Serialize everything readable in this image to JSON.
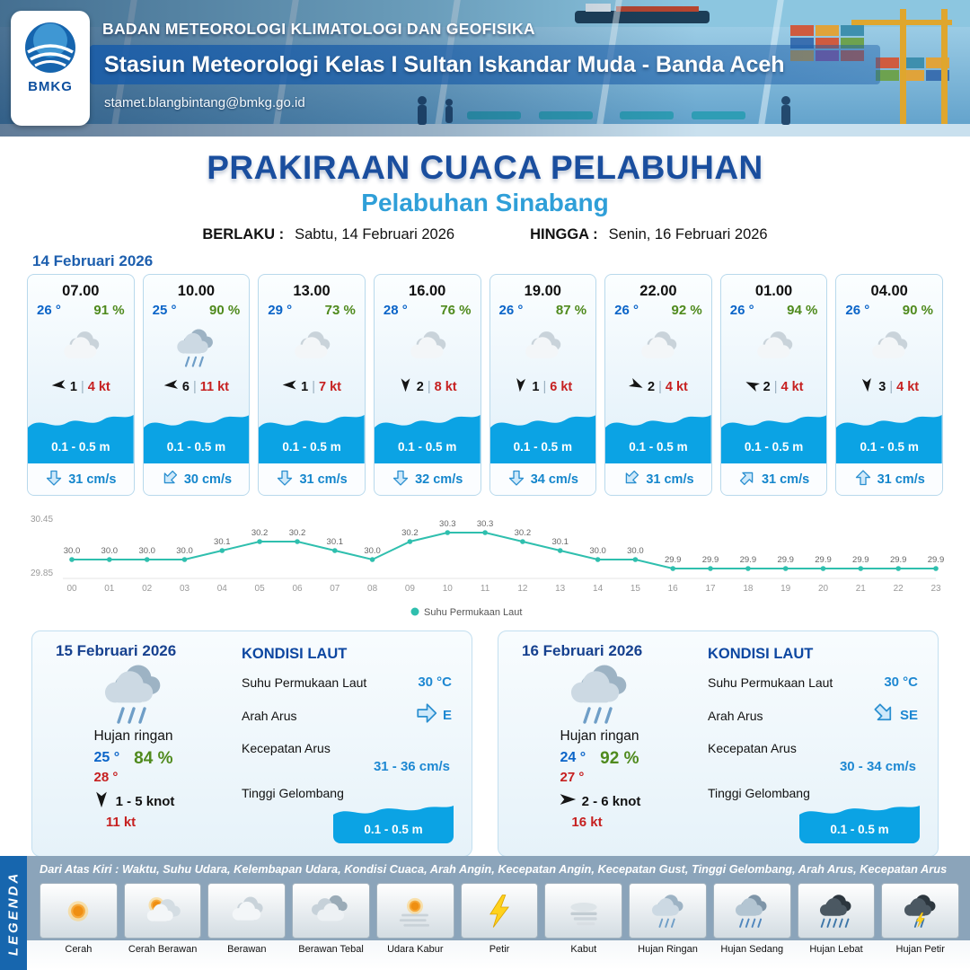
{
  "header": {
    "agency": "BADAN METEOROLOGI KLIMATOLOGI DAN GEOFISIKA",
    "station": "Stasiun Meteorologi Kelas I Sultan Iskandar Muda - Banda Aceh",
    "email": "stamet.blangbintang@bmkg.go.id",
    "logo_label": "BMKG"
  },
  "title": {
    "main": "PRAKIRAAN CUACA PELABUHAN",
    "subtitle": "Pelabuhan Sinabang",
    "berlaku_label": "BERLAKU :",
    "berlaku_value": "Sabtu, 14 Februari 2026",
    "hingga_label": "HINGGA :",
    "hingga_value": "Senin, 16 Februari 2026"
  },
  "ui": {
    "separator": "|"
  },
  "day1": {
    "date": "14 Februari 2026",
    "cards": [
      {
        "time": "07.00",
        "temp": "26 °",
        "rh": "91 %",
        "icon": "berawan",
        "wind_dir_deg": 265,
        "wind": "1",
        "gust": "4 kt",
        "wave": "0.1 - 0.5 m",
        "current_dir_deg": 180,
        "current": "31 cm/s"
      },
      {
        "time": "10.00",
        "temp": "25 °",
        "rh": "90 %",
        "icon": "hujan-ringan",
        "wind_dir_deg": 265,
        "wind": "6",
        "gust": "11 kt",
        "wave": "0.1 - 0.5 m",
        "current_dir_deg": 225,
        "current": "30 cm/s"
      },
      {
        "time": "13.00",
        "temp": "29 °",
        "rh": "73 %",
        "icon": "berawan",
        "wind_dir_deg": 270,
        "wind": "1",
        "gust": "7 kt",
        "wave": "0.1 - 0.5 m",
        "current_dir_deg": 180,
        "current": "31 cm/s"
      },
      {
        "time": "16.00",
        "temp": "28 °",
        "rh": "76 %",
        "icon": "berawan",
        "wind_dir_deg": 180,
        "wind": "2",
        "gust": "8 kt",
        "wave": "0.1 - 0.5 m",
        "current_dir_deg": 180,
        "current": "32 cm/s"
      },
      {
        "time": "19.00",
        "temp": "26 °",
        "rh": "87 %",
        "icon": "berawan",
        "wind_dir_deg": 185,
        "wind": "1",
        "gust": "6 kt",
        "wave": "0.1 - 0.5 m",
        "current_dir_deg": 180,
        "current": "34 cm/s"
      },
      {
        "time": "22.00",
        "temp": "26 °",
        "rh": "92 %",
        "icon": "berawan",
        "wind_dir_deg": 115,
        "wind": "2",
        "gust": "4 kt",
        "wave": "0.1 - 0.5 m",
        "current_dir_deg": 225,
        "current": "31 cm/s"
      },
      {
        "time": "01.00",
        "temp": "26 °",
        "rh": "94 %",
        "icon": "berawan",
        "wind_dir_deg": 295,
        "wind": "2",
        "gust": "4 kt",
        "wave": "0.1 - 0.5 m",
        "current_dir_deg": 45,
        "current": "31 cm/s"
      },
      {
        "time": "04.00",
        "temp": "26 °",
        "rh": "90 %",
        "icon": "berawan",
        "wind_dir_deg": 175,
        "wind": "3",
        "gust": "4 kt",
        "wave": "0.1 - 0.5 m",
        "current_dir_deg": 0,
        "current": "31 cm/s"
      }
    ]
  },
  "chart_data": {
    "type": "line",
    "title": "Suhu Permukaan Laut",
    "x": [
      "00",
      "01",
      "02",
      "03",
      "04",
      "05",
      "06",
      "07",
      "08",
      "09",
      "10",
      "11",
      "12",
      "13",
      "14",
      "15",
      "16",
      "17",
      "18",
      "19",
      "20",
      "21",
      "22",
      "23"
    ],
    "series": [
      {
        "name": "Suhu Permukaan Laut",
        "values": [
          30.0,
          30.0,
          30.0,
          30.0,
          30.1,
          30.2,
          30.2,
          30.1,
          30.0,
          30.2,
          30.3,
          30.3,
          30.2,
          30.1,
          30.0,
          30.0,
          29.9,
          29.9,
          29.9,
          29.9,
          29.9,
          29.9,
          29.9,
          29.9
        ]
      }
    ],
    "ylim": [
      29.85,
      30.45
    ],
    "line_color": "#2fbfae",
    "legend_position": "bottom",
    "grid": false,
    "xlabel": "",
    "ylabel": ""
  },
  "daily_labels": {
    "sea_title": "KONDISI LAUT",
    "sst": "Suhu Permukaan Laut",
    "current_dir": "Arah Arus",
    "current_speed": "Kecepatan Arus",
    "wave": "Tinggi Gelombang"
  },
  "days": [
    {
      "date": "15 Februari 2026",
      "icon": "hujan-ringan",
      "condition": "Hujan ringan",
      "temp_min": "25 °",
      "temp_max": "28 °",
      "rh": "84 %",
      "wind_dir_deg": 180,
      "wind": "1 - 5 knot",
      "gust": "11 kt",
      "sst": "30 °C",
      "current_dir": "E",
      "current_dir_deg": 90,
      "current_speed": "31 - 36 cm/s",
      "wave": "0.1 - 0.5 m"
    },
    {
      "date": "16 Februari 2026",
      "icon": "hujan-ringan",
      "condition": "Hujan ringan",
      "temp_min": "24 °",
      "temp_max": "27 °",
      "rh": "92 %",
      "wind_dir_deg": 90,
      "wind": "2 - 6 knot",
      "gust": "16 kt",
      "sst": "30 °C",
      "current_dir": "SE",
      "current_dir_deg": 135,
      "current_speed": "30 - 34 cm/s",
      "wave": "0.1 - 0.5 m"
    }
  ],
  "legend": {
    "vertical_label": "LEGENDA",
    "description": "Dari Atas Kiri : Waktu, Suhu Udara, Kelembapan Udara, Kondisi Cuaca, Arah Angin, Kecepatan Angin, Kecepatan Gust, Tinggi Gelombang, Arah Arus, Kecepatan Arus",
    "items": [
      {
        "icon": "cerah",
        "label": "Cerah"
      },
      {
        "icon": "cerah-berawan",
        "label": "Cerah Berawan"
      },
      {
        "icon": "berawan",
        "label": "Berawan"
      },
      {
        "icon": "berawan-tebal",
        "label": "Berawan Tebal"
      },
      {
        "icon": "udara-kabur",
        "label": "Udara Kabur"
      },
      {
        "icon": "petir",
        "label": "Petir"
      },
      {
        "icon": "kabut",
        "label": "Kabut"
      },
      {
        "icon": "hujan-ringan",
        "label": "Hujan Ringan"
      },
      {
        "icon": "hujan-sedang",
        "label": "Hujan Sedang"
      },
      {
        "icon": "hujan-lebat",
        "label": "Hujan Lebat"
      },
      {
        "icon": "hujan-petir",
        "label": "Hujan Petir"
      }
    ]
  },
  "colors": {
    "accent_blue": "#1a4e9e",
    "subtitle_blue": "#2f9fd8",
    "temp_blue": "#0a64c8",
    "humidity_green": "#4f8a1d",
    "gust_red": "#c62020",
    "wave_blue": "#0ba3e4",
    "current_blue": "#1486cc",
    "chart_line": "#2fbfae",
    "legend_bg": "#8ba4ba",
    "legend_band_blue": "#1766ae"
  }
}
